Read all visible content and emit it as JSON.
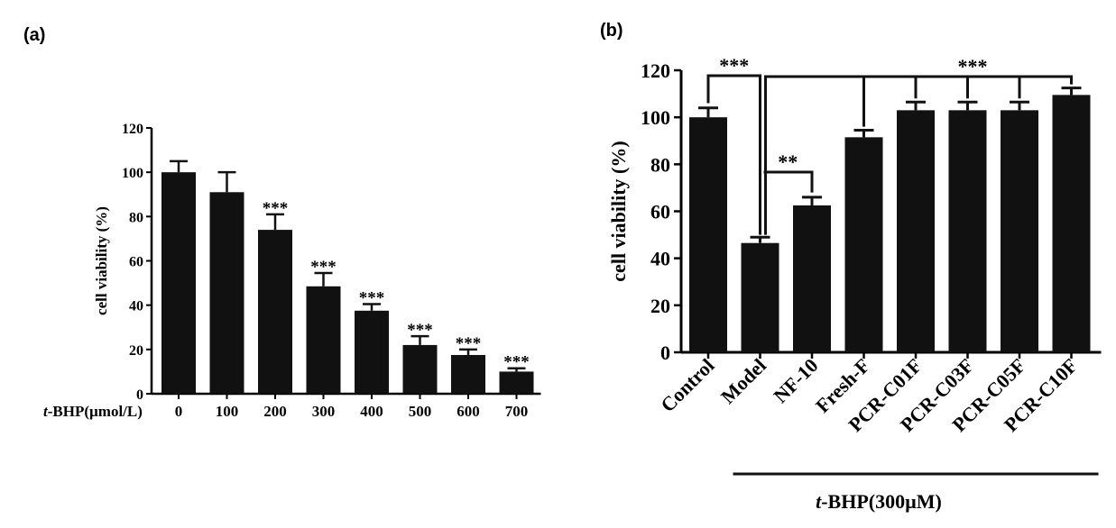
{
  "chart_data": [
    {
      "type": "bar",
      "panel": "(a)",
      "title": "",
      "xlabel_prefix": "t",
      "xlabel_rest": "-BHP(µmol/L)",
      "ylabel": "cell viability (%)",
      "ylim": [
        0,
        120
      ],
      "yticks": [
        "0",
        "20",
        "40",
        "60",
        "80",
        "100",
        "120"
      ],
      "categories": [
        "0",
        "100",
        "200",
        "300",
        "400",
        "500",
        "600",
        "700"
      ],
      "values": [
        100,
        91,
        74,
        48.5,
        37.5,
        22,
        17.5,
        10
      ],
      "errors": [
        5,
        9,
        7,
        6,
        3,
        4,
        2.5,
        1.5
      ],
      "significance": [
        "",
        "",
        "***",
        "***",
        "***",
        "***",
        "***",
        "***"
      ]
    },
    {
      "type": "bar",
      "panel": "(b)",
      "title": "",
      "ylabel": "cell viability (%)",
      "ylim": [
        0,
        120
      ],
      "yticks": [
        "0",
        "20",
        "40",
        "60",
        "80",
        "100",
        "120"
      ],
      "categories": [
        "Control",
        "Model",
        "NF-10",
        "Fresh-F",
        "PCR-C01F",
        "PCR-C03F",
        "PCR-C05F",
        "PCR-C10F"
      ],
      "values": [
        100,
        46.5,
        62.5,
        91.5,
        103,
        103,
        103,
        109.5
      ],
      "errors": [
        4,
        2.5,
        3.5,
        3,
        3.5,
        3.5,
        3.5,
        3
      ],
      "brackets": [
        {
          "label": "***",
          "from": "Control",
          "to": "Model"
        },
        {
          "label": "**",
          "from": "Model",
          "to": "NF-10"
        },
        {
          "label": "***",
          "from": "Model",
          "to": "PCR-C10F"
        }
      ],
      "group_label_prefix": "t",
      "group_label_rest": "-BHP(300µM)"
    }
  ]
}
